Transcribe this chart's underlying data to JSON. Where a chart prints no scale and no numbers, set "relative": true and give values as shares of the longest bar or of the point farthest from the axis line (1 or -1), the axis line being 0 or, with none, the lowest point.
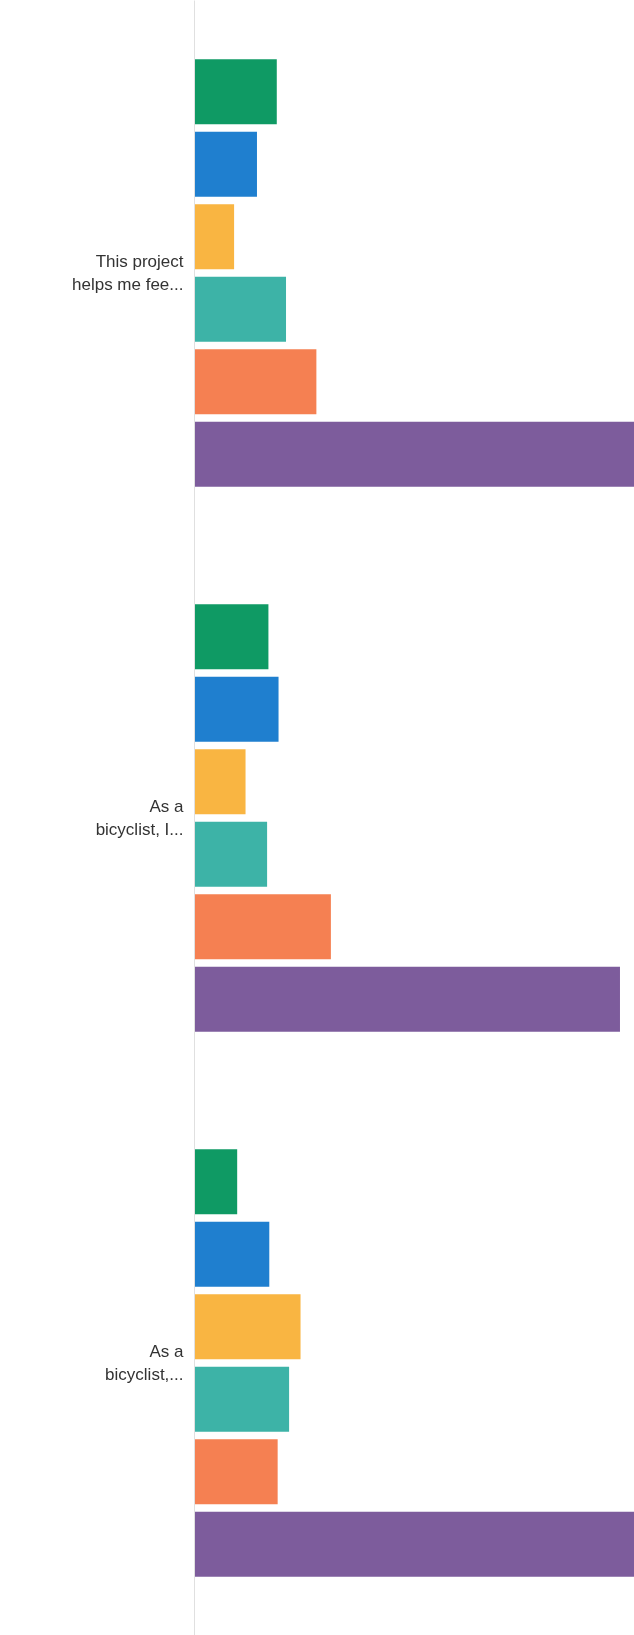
{
  "chart_data": {
    "type": "bar",
    "orientation": "horizontal",
    "relative": true,
    "categories": [
      "This project helps me fee...",
      "As a bicyclist, I...",
      "As a bicyclist,..."
    ],
    "series": [
      {
        "color": "#0f9a64",
        "values": [
          0.187,
          0.168,
          0.097
        ]
      },
      {
        "color": "#1f7fcf",
        "values": [
          0.142,
          0.191,
          0.17
        ]
      },
      {
        "color": "#f9b542",
        "values": [
          0.09,
          0.116,
          0.241
        ]
      },
      {
        "color": "#3db3a7",
        "values": [
          0.208,
          0.165,
          0.215
        ]
      },
      {
        "color": "#f58052",
        "values": [
          0.277,
          0.31,
          0.189
        ]
      },
      {
        "color": "#7d5c9c",
        "values": [
          1.0,
          0.967,
          1.0
        ]
      }
    ]
  }
}
